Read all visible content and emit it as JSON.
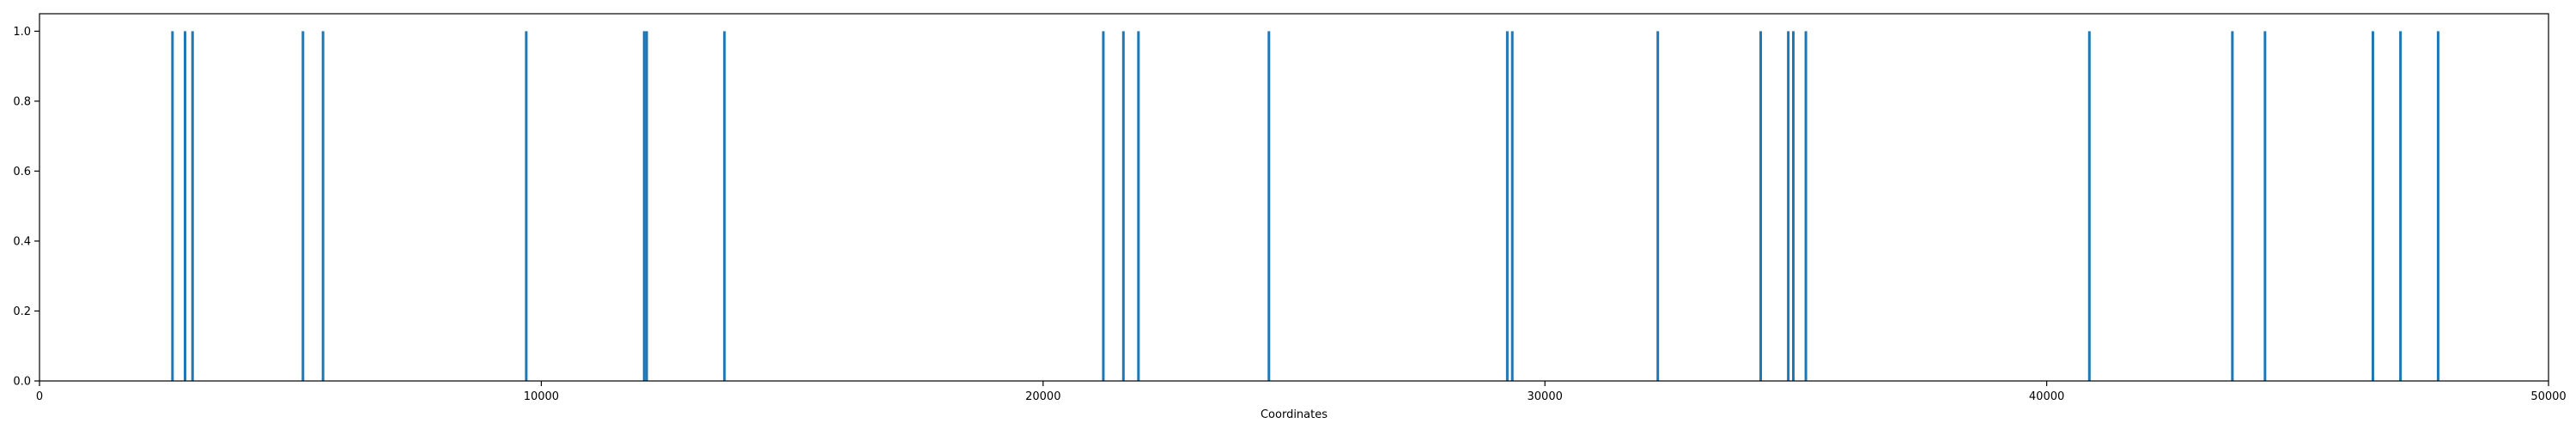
{
  "chart_data": {
    "type": "bar",
    "title": "",
    "xlabel": "Coordinates",
    "ylabel": "",
    "xlim": [
      0,
      50000
    ],
    "ylim": [
      0.0,
      1.05
    ],
    "grid": false,
    "legend": "none",
    "colors": {
      "bars": "#1f77b4",
      "axes": "#000000",
      "background": "#ffffff"
    },
    "x_ticks": [
      0,
      10000,
      20000,
      30000,
      40000,
      50000
    ],
    "x_tick_labels": [
      "0",
      "10000",
      "20000",
      "30000",
      "40000",
      "50000"
    ],
    "y_ticks": [
      0.0,
      0.2,
      0.4,
      0.6,
      0.8,
      1.0
    ],
    "y_tick_labels": [
      "0.0",
      "0.2",
      "0.4",
      "0.6",
      "0.8",
      "1.0"
    ],
    "series": [
      {
        "x": [
          2650,
          2900,
          3050,
          5250,
          5650,
          9700,
          12050,
          12100,
          13650,
          21200,
          21600,
          21900,
          24500,
          29250,
          29350,
          32250,
          34300,
          34850,
          34950,
          35200,
          40850,
          43700,
          44350,
          46500,
          47050,
          47800
        ],
        "values": [
          1,
          1,
          1,
          1,
          1,
          1,
          1,
          1,
          1,
          1,
          1,
          1,
          1,
          1,
          1,
          1,
          1,
          1,
          1,
          1,
          1,
          1,
          1,
          1,
          1,
          1
        ]
      }
    ]
  }
}
